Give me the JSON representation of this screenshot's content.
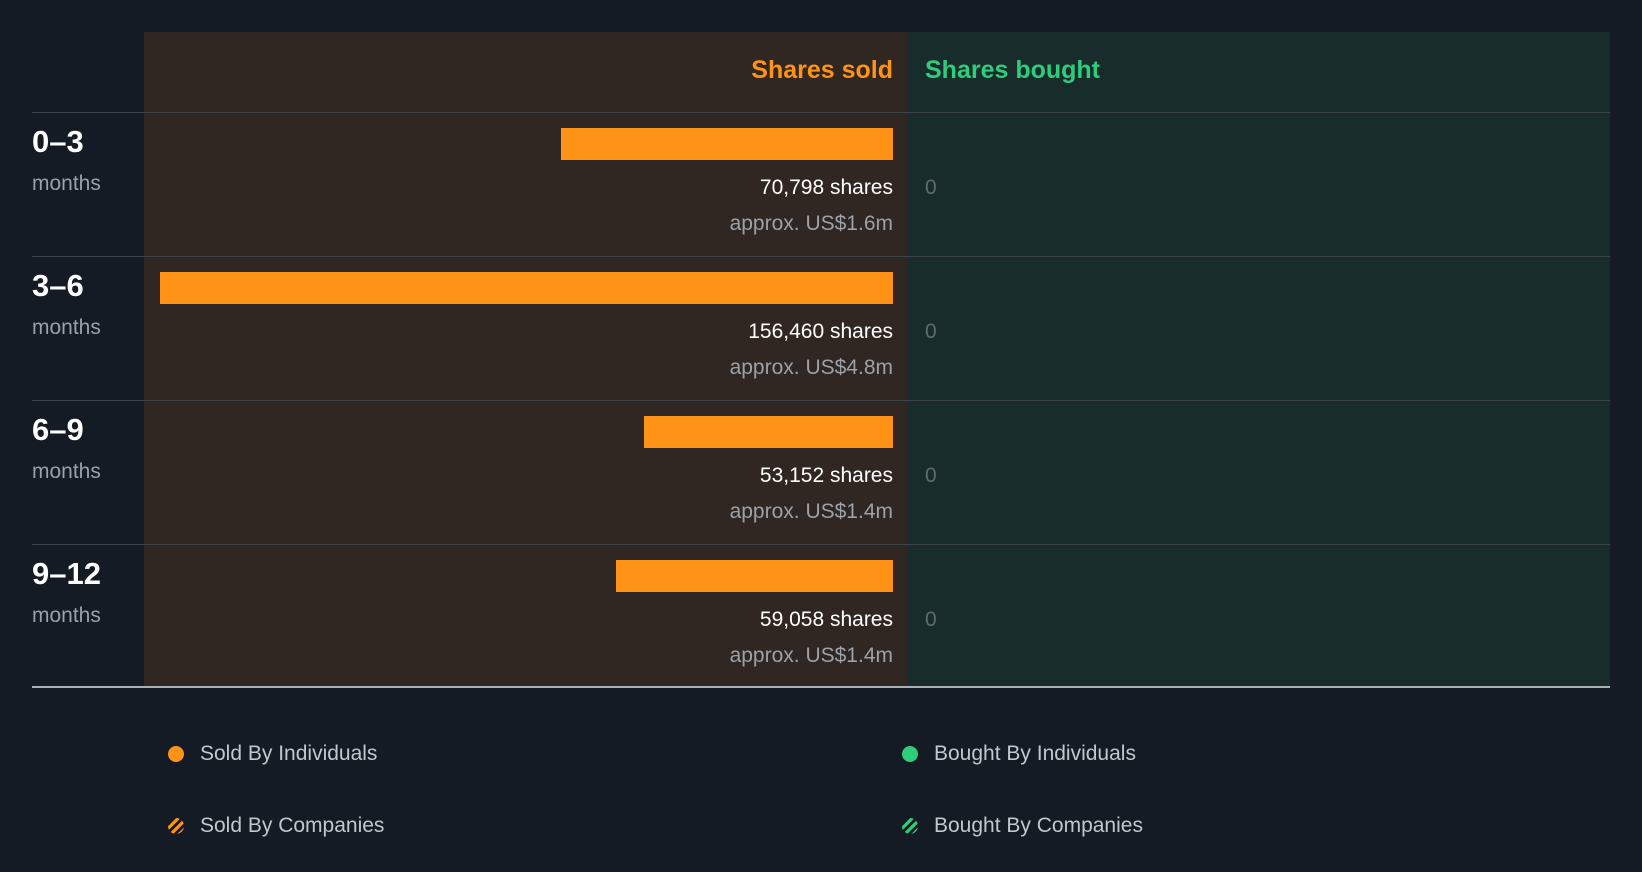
{
  "chart_data": {
    "type": "bar",
    "title": "",
    "columns": {
      "sold_label": "Shares sold",
      "bought_label": "Shares bought"
    },
    "unit_label": "months",
    "categories": [
      "0–3",
      "3–6",
      "6–9",
      "9–12"
    ],
    "series": [
      {
        "name": "Shares sold",
        "values": [
          70798,
          156460,
          53152,
          59058
        ],
        "share_labels": [
          "70,798 shares",
          "156,460 shares",
          "53,152 shares",
          "59,058 shares"
        ],
        "value_labels": [
          "approx. US$1.6m",
          "approx. US$4.8m",
          "approx. US$1.4m",
          "approx. US$1.4m"
        ]
      },
      {
        "name": "Shares bought",
        "values": [
          0,
          0,
          0,
          0
        ],
        "share_labels": [
          "0",
          "0",
          "0",
          "0"
        ]
      }
    ],
    "xlim": [
      0,
      156460
    ],
    "legend": [
      {
        "label": "Sold By Individuals",
        "color": "#ff9317",
        "pattern": "solid"
      },
      {
        "label": "Sold By Companies",
        "color": "#ff9317",
        "pattern": "striped"
      },
      {
        "label": "Bought By Individuals",
        "color": "#2fcc7c",
        "pattern": "solid"
      },
      {
        "label": "Bought By Companies",
        "color": "#2fcc7c",
        "pattern": "striped"
      }
    ],
    "colors": {
      "sold": "#ff9317",
      "bought": "#2fcc7c"
    }
  }
}
